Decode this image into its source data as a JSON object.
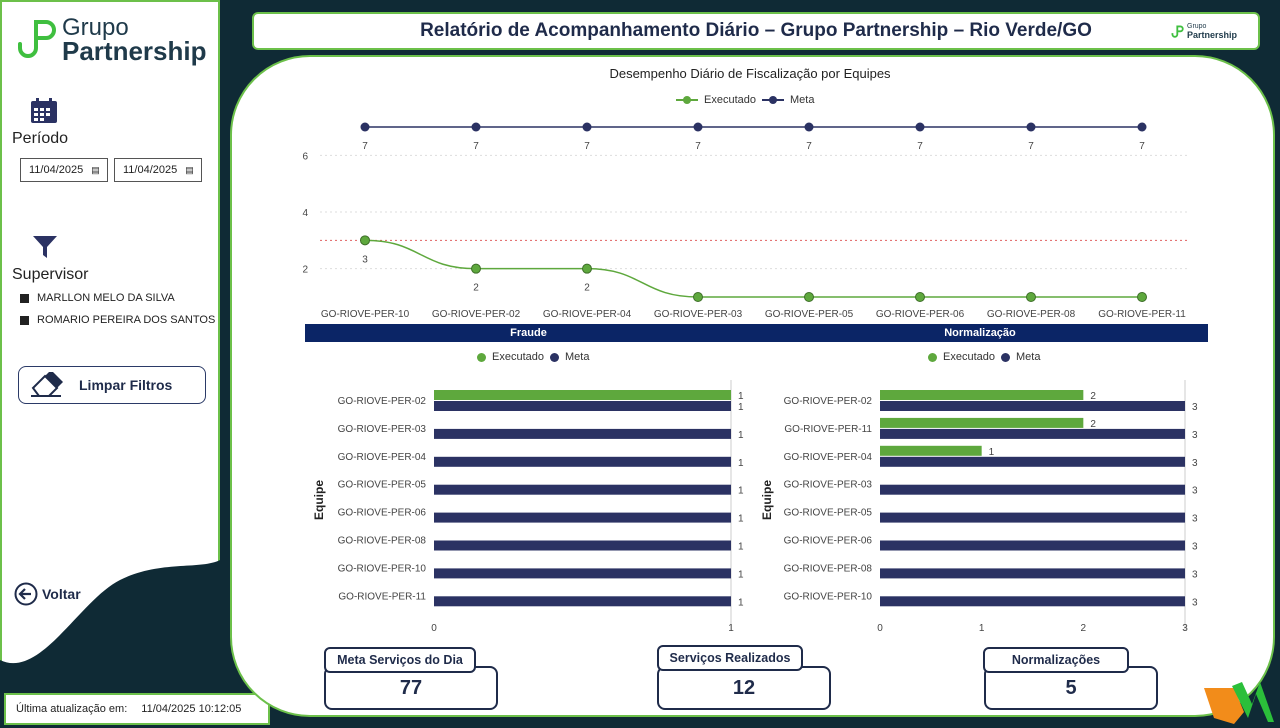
{
  "brand": {
    "line1": "Grupo",
    "line2": "Partnership",
    "mini1": "Grupo",
    "mini2": "Partnership"
  },
  "header": {
    "title": "Relatório de Acompanhamento Diário – Grupo Partnership – Rio Verde/GO"
  },
  "sidebar": {
    "period_label": "Período",
    "date_from": "11/04/2025",
    "date_to": "11/04/2025",
    "supervisor_label": "Supervisor",
    "supervisors": [
      "MARLLON MELO DA SILVA",
      "ROMARIO PEREIRA DOS SANTOS"
    ],
    "clear_label": "Limpar Filtros",
    "back_label": "Voltar"
  },
  "footer": {
    "updated_label": "Última atualização em:",
    "updated_value": "11/04/2025 10:12:05"
  },
  "colors": {
    "executado": "#5ea83d",
    "meta": "#2b3263",
    "section": "#0b2566",
    "border": "#6cc04a"
  },
  "legend": {
    "executado": "Executado",
    "meta": "Meta"
  },
  "sections": {
    "fraude": "Fraude",
    "normalizacao": "Normalização",
    "axis_label": "Equipe"
  },
  "kpis": [
    {
      "title": "Meta Serviços do Dia",
      "value": "77"
    },
    {
      "title": "Serviços Realizados",
      "value": "12"
    },
    {
      "title": "Normalizações",
      "value": "5"
    }
  ],
  "chart_data": [
    {
      "type": "line",
      "title": "Desempenho Diário de Fiscalização por Equipes",
      "categories": [
        "GO-RIOVE-PER-10",
        "GO-RIOVE-PER-02",
        "GO-RIOVE-PER-04",
        "GO-RIOVE-PER-03",
        "GO-RIOVE-PER-05",
        "GO-RIOVE-PER-06",
        "GO-RIOVE-PER-08",
        "GO-RIOVE-PER-11"
      ],
      "series": [
        {
          "name": "Executado",
          "values": [
            3,
            2,
            2,
            1,
            1,
            1,
            1,
            1
          ],
          "labels": [
            "3",
            "2",
            "2",
            "",
            "",
            "",
            "",
            ""
          ]
        },
        {
          "name": "Meta",
          "values": [
            7,
            7,
            7,
            7,
            7,
            7,
            7,
            7
          ],
          "labels": [
            "7",
            "7",
            "7",
            "7",
            "7",
            "7",
            "7",
            "7"
          ]
        }
      ],
      "yticks": [
        2,
        4,
        6
      ],
      "reference_line": 3,
      "ylim": [
        1,
        7
      ]
    },
    {
      "type": "bar",
      "title": "Fraude",
      "orientation": "horizontal",
      "ylabel": "Equipe",
      "categories": [
        "GO-RIOVE-PER-02",
        "GO-RIOVE-PER-03",
        "GO-RIOVE-PER-04",
        "GO-RIOVE-PER-05",
        "GO-RIOVE-PER-06",
        "GO-RIOVE-PER-08",
        "GO-RIOVE-PER-10",
        "GO-RIOVE-PER-11"
      ],
      "series": [
        {
          "name": "Executado",
          "values": [
            1,
            0,
            0,
            0,
            0,
            0,
            0,
            0
          ]
        },
        {
          "name": "Meta",
          "values": [
            1,
            1,
            1,
            1,
            1,
            1,
            1,
            1
          ]
        }
      ],
      "xticks": [
        0,
        1
      ],
      "xlim": [
        0,
        1
      ]
    },
    {
      "type": "bar",
      "title": "Normalização",
      "orientation": "horizontal",
      "ylabel": "Equipe",
      "categories": [
        "GO-RIOVE-PER-02",
        "GO-RIOVE-PER-11",
        "GO-RIOVE-PER-04",
        "GO-RIOVE-PER-03",
        "GO-RIOVE-PER-05",
        "GO-RIOVE-PER-06",
        "GO-RIOVE-PER-08",
        "GO-RIOVE-PER-10"
      ],
      "series": [
        {
          "name": "Executado",
          "values": [
            2,
            2,
            1,
            0,
            0,
            0,
            0,
            0
          ]
        },
        {
          "name": "Meta",
          "values": [
            3,
            3,
            3,
            3,
            3,
            3,
            3,
            3
          ]
        }
      ],
      "xticks": [
        0,
        1,
        2,
        3
      ],
      "xlim": [
        0,
        3
      ]
    }
  ]
}
